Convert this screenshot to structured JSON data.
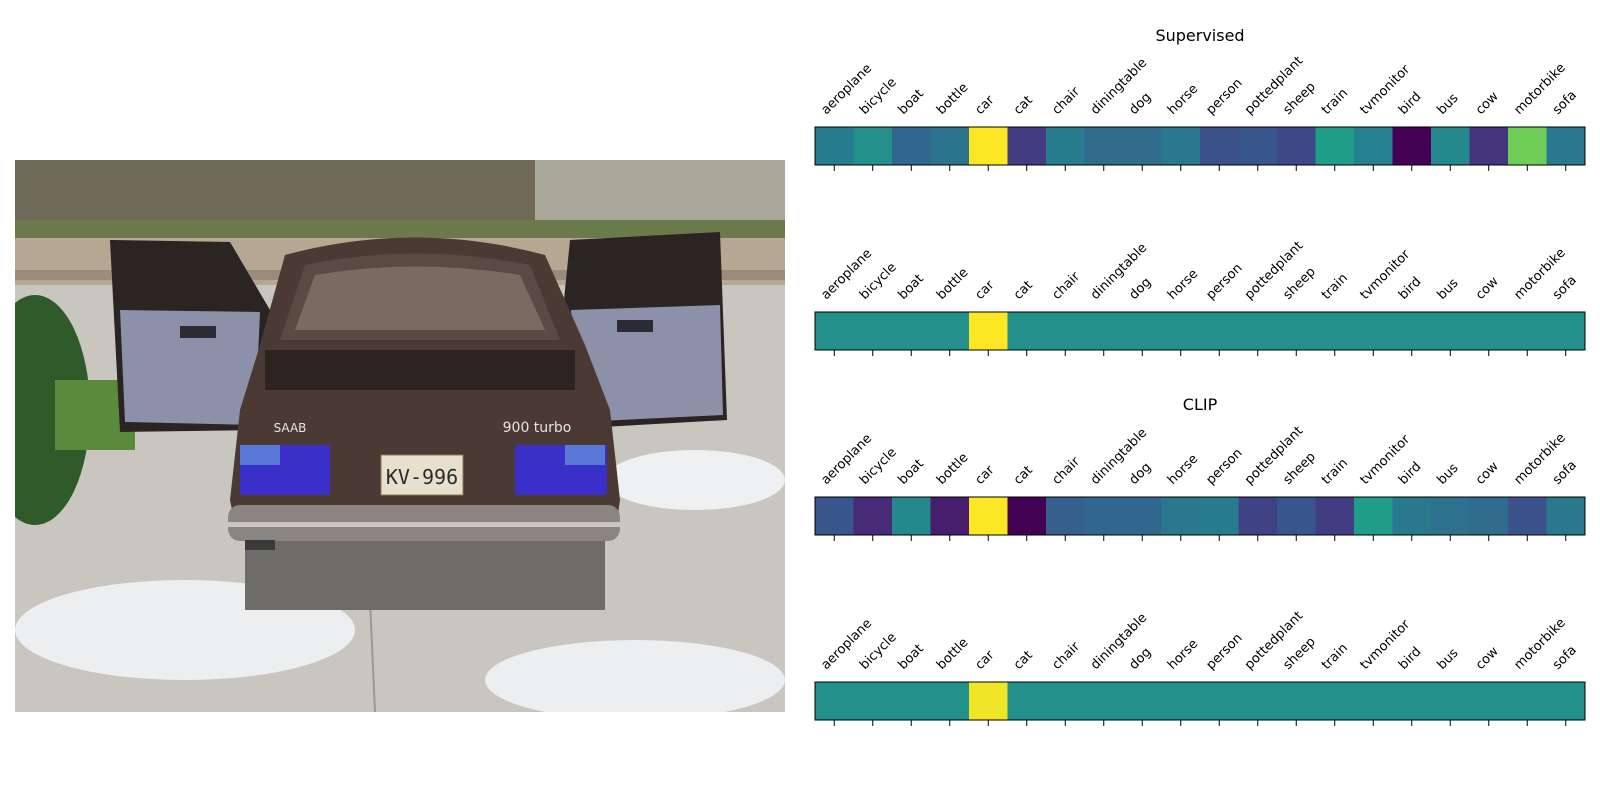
{
  "chart_data": [
    {
      "type": "heatmap",
      "title": "Supervised",
      "categories": [
        "aeroplane",
        "bicycle",
        "boat",
        "bottle",
        "car",
        "cat",
        "chair",
        "diningtable",
        "dog",
        "horse",
        "person",
        "pottedplant",
        "sheep",
        "train",
        "tvmonitor",
        "bird",
        "bus",
        "cow",
        "motorbike",
        "sofa"
      ],
      "values": [
        0.42,
        0.5,
        0.33,
        0.38,
        1.0,
        0.18,
        0.42,
        0.35,
        0.35,
        0.4,
        0.25,
        0.27,
        0.22,
        0.55,
        0.44,
        0.0,
        0.47,
        0.15,
        0.78,
        0.4
      ],
      "colormap": "viridis",
      "xlabel": "",
      "ylabel": ""
    },
    {
      "type": "heatmap",
      "title": "",
      "categories": [
        "aeroplane",
        "bicycle",
        "boat",
        "bottle",
        "car",
        "cat",
        "chair",
        "diningtable",
        "dog",
        "horse",
        "person",
        "pottedplant",
        "sheep",
        "train",
        "tvmonitor",
        "bird",
        "bus",
        "cow",
        "motorbike",
        "sofa"
      ],
      "values": [
        0.5,
        0.5,
        0.5,
        0.5,
        1.0,
        0.5,
        0.5,
        0.5,
        0.5,
        0.5,
        0.5,
        0.5,
        0.5,
        0.5,
        0.5,
        0.5,
        0.5,
        0.5,
        0.5,
        0.5
      ],
      "colormap": "viridis",
      "xlabel": "",
      "ylabel": ""
    },
    {
      "type": "heatmap",
      "title": "CLIP",
      "categories": [
        "aeroplane",
        "bicycle",
        "boat",
        "bottle",
        "car",
        "cat",
        "chair",
        "diningtable",
        "dog",
        "horse",
        "person",
        "pottedplant",
        "sheep",
        "train",
        "tvmonitor",
        "bird",
        "bus",
        "cow",
        "motorbike",
        "sofa"
      ],
      "values": [
        0.27,
        0.12,
        0.47,
        0.08,
        1.0,
        0.0,
        0.3,
        0.33,
        0.33,
        0.4,
        0.42,
        0.2,
        0.27,
        0.18,
        0.55,
        0.4,
        0.37,
        0.35,
        0.25,
        0.4
      ],
      "colormap": "viridis",
      "xlabel": "",
      "ylabel": ""
    },
    {
      "type": "heatmap",
      "title": "",
      "categories": [
        "aeroplane",
        "bicycle",
        "boat",
        "bottle",
        "car",
        "cat",
        "chair",
        "diningtable",
        "dog",
        "horse",
        "person",
        "pottedplant",
        "sheep",
        "train",
        "tvmonitor",
        "bird",
        "bus",
        "cow",
        "motorbike",
        "sofa"
      ],
      "values": [
        0.5,
        0.5,
        0.5,
        0.5,
        0.98,
        0.5,
        0.5,
        0.5,
        0.5,
        0.5,
        0.5,
        0.5,
        0.5,
        0.5,
        0.5,
        0.5,
        0.5,
        0.5,
        0.5,
        0.5
      ],
      "colormap": "viridis",
      "xlabel": "",
      "ylabel": ""
    }
  ],
  "photo": {
    "plate_text": "KV-996",
    "badge_text": "900 turbo",
    "brand_text": "SAAB"
  },
  "colors": {
    "viridis_stops": [
      "#440154",
      "#482878",
      "#3e4989",
      "#31688e",
      "#26828e",
      "#1f9e89",
      "#35b779",
      "#6ece58",
      "#b5de2b",
      "#fde725"
    ]
  }
}
